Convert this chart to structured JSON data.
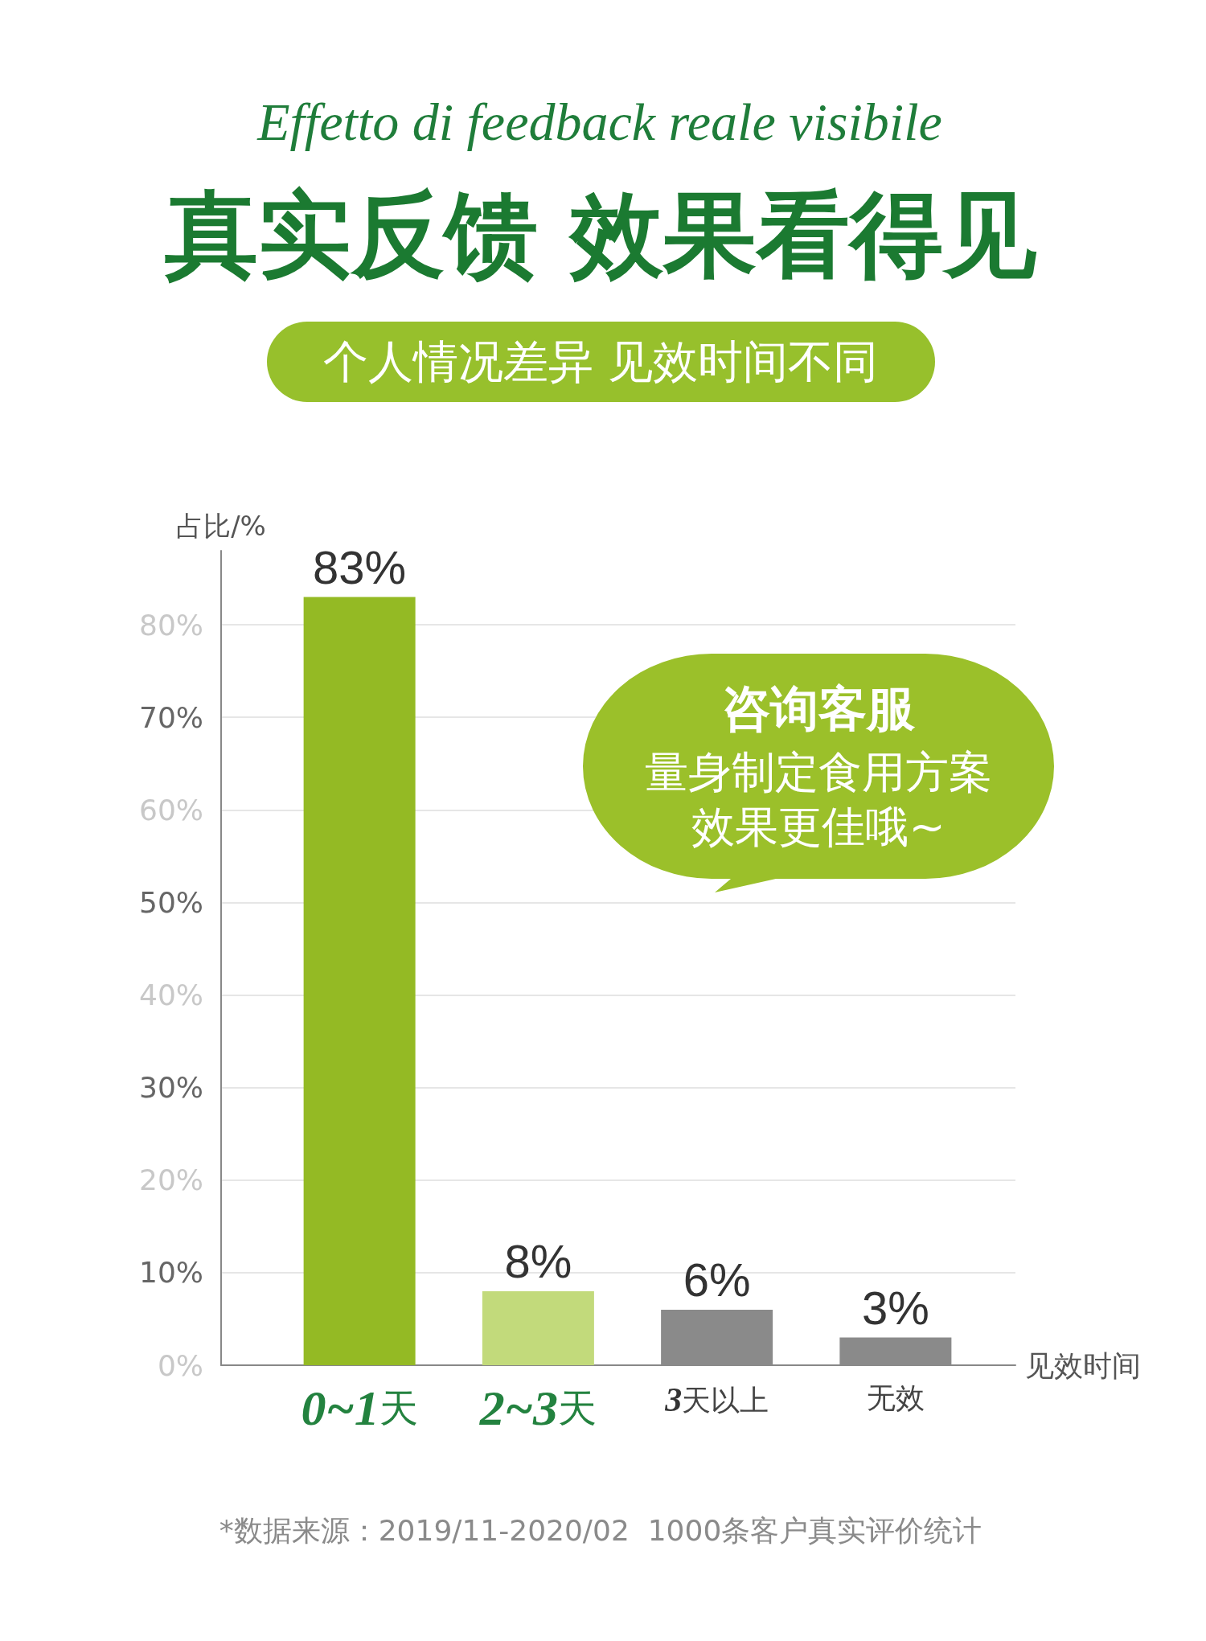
{
  "chart_data": {
    "type": "bar",
    "title": "真实反馈 效果看得见",
    "subtitle": "个人情况差异 见效时间不同",
    "annotations": [
      "Effetto di feedback reale visibile",
      "咨询客服",
      "量身制定食用方案",
      "效果更佳哦~",
      "*数据来源：2019/11-2020/02  1000条客户真实评价统计"
    ],
    "xlabel": "见效时间",
    "ylabel": "占比/%",
    "categories": [
      "0~1天",
      "2~3天",
      "3天以上",
      "无效"
    ],
    "values": [
      83,
      8,
      6,
      3
    ],
    "colors": [
      "#94ba24",
      "#c2da7b",
      "#8a8a8a",
      "#8a8a8a"
    ],
    "value_labels": [
      "83%",
      "8%",
      "6%",
      "3%"
    ],
    "ylim": [
      0,
      88
    ],
    "yticks": [
      {
        "value": 0,
        "label": "0%"
      },
      {
        "value": 10,
        "label": "10%"
      },
      {
        "value": 20,
        "label": "20%"
      },
      {
        "value": 30,
        "label": "30%"
      },
      {
        "value": 40,
        "label": "40%"
      },
      {
        "value": 50,
        "label": "50%"
      },
      {
        "value": 60,
        "label": "60%"
      },
      {
        "value": 70,
        "label": "70%"
      },
      {
        "value": 80,
        "label": "80%"
      }
    ],
    "grid": "y"
  }
}
